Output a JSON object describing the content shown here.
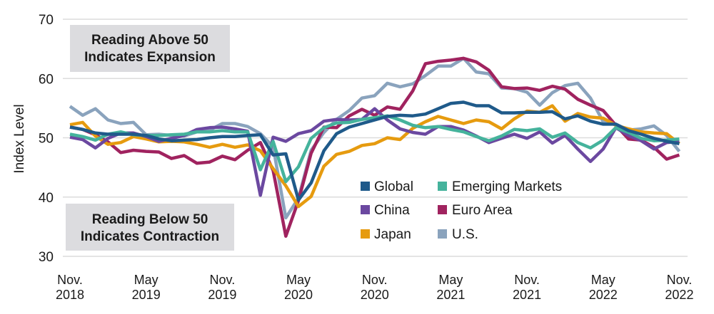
{
  "chart_data": {
    "type": "line",
    "title": "",
    "xlabel": "",
    "ylabel": "Index Level",
    "ylim": [
      30,
      70
    ],
    "yticks": [
      "30",
      "40",
      "50",
      "60",
      "70"
    ],
    "grid": true,
    "x_start": "Nov. 2018",
    "x_end": "Nov. 2022",
    "x_frequency": "monthly",
    "xticks": [
      {
        "month_index": 0,
        "line1": "Nov.",
        "line2": "2018"
      },
      {
        "month_index": 6,
        "line1": "May",
        "line2": "2019"
      },
      {
        "month_index": 12,
        "line1": "Nov.",
        "line2": "2019"
      },
      {
        "month_index": 18,
        "line1": "May",
        "line2": "2020"
      },
      {
        "month_index": 24,
        "line1": "Nov.",
        "line2": "2020"
      },
      {
        "month_index": 30,
        "line1": "May",
        "line2": "2021"
      },
      {
        "month_index": 36,
        "line1": "Nov.",
        "line2": "2021"
      },
      {
        "month_index": 42,
        "line1": "May",
        "line2": "2022"
      },
      {
        "month_index": 48,
        "line1": "Nov.",
        "line2": "2022"
      }
    ],
    "annotations": {
      "above": {
        "line1": "Reading Above 50",
        "line2": "Indicates Expansion"
      },
      "below": {
        "line1": "Reading Below 50",
        "line2": "Indicates Contraction"
      }
    },
    "legend_position": "lower-center",
    "series": [
      {
        "name": "U.S.",
        "color": "#8aa3bd",
        "values": [
          55.3,
          53.8,
          54.9,
          53.0,
          52.4,
          52.6,
          50.5,
          50.6,
          50.4,
          50.3,
          51.0,
          51.3,
          52.4,
          52.4,
          51.9,
          50.7,
          48.5,
          36.5,
          39.8,
          47.9,
          50.9,
          53.1,
          54.6,
          56.7,
          57.1,
          59.2,
          58.6,
          59.1,
          60.5,
          62.1,
          62.1,
          63.4,
          61.1,
          60.8,
          58.4,
          58.3,
          57.7,
          55.5,
          57.6,
          58.8,
          59.2,
          56.7,
          52.7,
          52.3,
          51.3,
          51.5,
          52.0,
          50.4,
          47.7
        ]
      },
      {
        "name": "Euro Area",
        "color": "#a0235f",
        "values": [
          51.8,
          51.4,
          50.5,
          49.3,
          47.5,
          47.9,
          47.7,
          47.6,
          46.5,
          47.0,
          45.7,
          45.9,
          46.9,
          46.3,
          47.9,
          49.2,
          44.5,
          33.4,
          39.4,
          47.4,
          51.8,
          51.7,
          53.7,
          54.8,
          53.8,
          55.2,
          54.8,
          57.9,
          62.5,
          62.9,
          63.1,
          63.4,
          62.8,
          61.4,
          58.6,
          58.3,
          58.4,
          58.0,
          58.7,
          58.2,
          56.5,
          55.5,
          54.6,
          52.1,
          49.8,
          49.6,
          48.4,
          46.4,
          47.1
        ]
      },
      {
        "name": "Japan",
        "color": "#e69b0f",
        "values": [
          52.2,
          52.6,
          50.3,
          48.9,
          49.2,
          50.2,
          49.8,
          49.3,
          49.4,
          49.3,
          48.9,
          48.4,
          48.9,
          48.4,
          48.8,
          47.8,
          44.8,
          41.9,
          38.4,
          40.1,
          45.2,
          47.2,
          47.7,
          48.7,
          49.0,
          50.0,
          49.7,
          51.6,
          52.7,
          53.6,
          53.0,
          52.4,
          53.0,
          52.7,
          51.5,
          53.2,
          54.5,
          54.3,
          55.4,
          52.8,
          54.1,
          53.5,
          53.3,
          52.1,
          51.5,
          51.0,
          50.8,
          50.7,
          49.0
        ]
      },
      {
        "name": "China",
        "color": "#6b48a0",
        "values": [
          50.1,
          49.7,
          48.3,
          49.9,
          50.8,
          50.8,
          50.2,
          49.4,
          49.9,
          50.4,
          51.4,
          51.7,
          51.8,
          51.5,
          51.1,
          40.3,
          50.1,
          49.4,
          50.7,
          51.2,
          52.8,
          53.1,
          53.0,
          53.1,
          54.9,
          53.0,
          51.5,
          50.9,
          50.6,
          51.9,
          51.9,
          51.3,
          50.3,
          49.2,
          49.9,
          50.6,
          49.9,
          51.0,
          49.1,
          50.4,
          48.1,
          46.0,
          48.1,
          51.7,
          50.4,
          49.5,
          48.1,
          49.2,
          49.4
        ]
      },
      {
        "name": "Emerging Markets",
        "color": "#45b39c",
        "values": [
          50.6,
          50.2,
          49.6,
          50.6,
          51.0,
          50.5,
          50.4,
          50.4,
          50.5,
          50.6,
          51.0,
          51.0,
          51.2,
          51.0,
          51.0,
          44.6,
          49.4,
          42.6,
          45.1,
          49.9,
          51.7,
          52.5,
          52.6,
          53.1,
          53.4,
          53.7,
          53.0,
          52.1,
          51.7,
          51.9,
          51.4,
          51.0,
          50.2,
          49.5,
          50.3,
          51.4,
          51.2,
          51.5,
          50.1,
          50.8,
          49.2,
          48.3,
          49.6,
          51.7,
          50.9,
          49.9,
          49.5,
          49.6,
          49.8
        ]
      },
      {
        "name": "Global",
        "color": "#1f5a8a",
        "values": [
          51.8,
          51.4,
          50.8,
          50.6,
          50.6,
          50.6,
          50.4,
          49.8,
          49.5,
          49.6,
          49.7,
          50.0,
          50.2,
          50.2,
          50.4,
          50.5,
          47.1,
          47.3,
          39.5,
          42.4,
          47.8,
          50.7,
          51.8,
          52.4,
          53.0,
          53.6,
          53.8,
          53.7,
          54.0,
          54.9,
          55.8,
          56.0,
          55.4,
          55.4,
          54.2,
          54.2,
          54.3,
          54.3,
          54.4,
          53.2,
          53.7,
          52.8,
          52.3,
          52.3,
          51.2,
          50.6,
          49.9,
          49.4,
          49.0
        ]
      }
    ],
    "legend": [
      {
        "name": "Global",
        "color": "#1f5a8a"
      },
      {
        "name": "Emerging Markets",
        "color": "#45b39c"
      },
      {
        "name": "China",
        "color": "#6b48a0"
      },
      {
        "name": "Euro Area",
        "color": "#a0235f"
      },
      {
        "name": "Japan",
        "color": "#e69b0f"
      },
      {
        "name": "U.S.",
        "color": "#8aa3bd"
      }
    ]
  }
}
